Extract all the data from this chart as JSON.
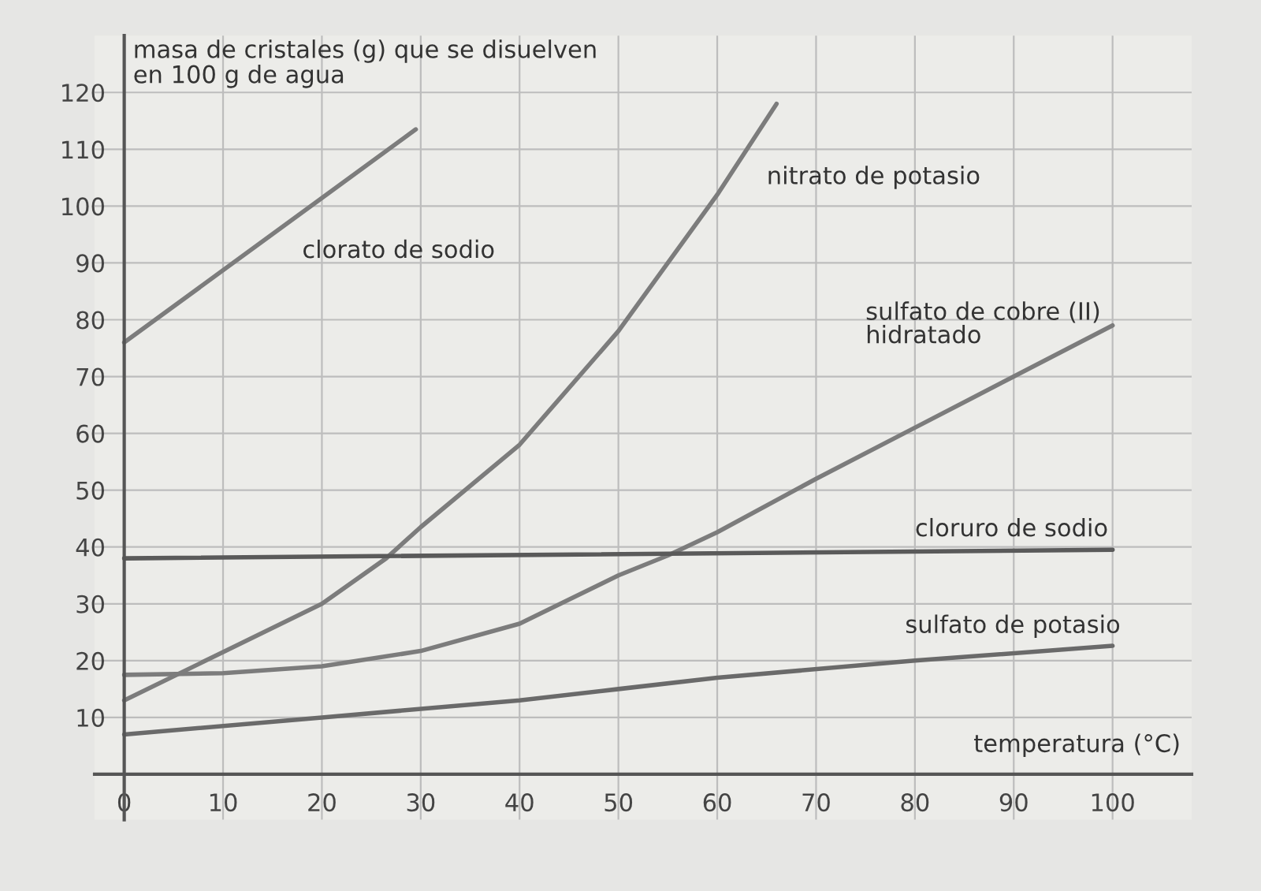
{
  "chart_data": {
    "type": "line",
    "xlabel": "temperatura (°C)",
    "ylabel": "masa de cristales (g) que se disuelven\nen 100 g de agua",
    "xlim": [
      -3,
      108
    ],
    "ylim": [
      -8,
      130
    ],
    "xticks": [
      0,
      10,
      20,
      30,
      40,
      50,
      60,
      70,
      80,
      90,
      100
    ],
    "yticks": [
      10,
      20,
      30,
      40,
      50,
      60,
      70,
      80,
      90,
      100,
      110,
      120
    ],
    "grid": true,
    "marker": "none",
    "line_style": "solid",
    "series": [
      {
        "name": "clorato de sodio",
        "color": "#7c7c7c",
        "x": [
          0,
          29.5
        ],
        "values": [
          76,
          113.5
        ]
      },
      {
        "name": "nitrato de potasio",
        "color": "#7c7c7c",
        "x": [
          0,
          10,
          20,
          26.5,
          30,
          40,
          50,
          60,
          66
        ],
        "values": [
          13,
          21.5,
          30,
          38,
          43.5,
          58,
          78,
          102,
          118
        ]
      },
      {
        "name": "sulfato de cobre (II)\nhidratado",
        "color": "#7c7c7c",
        "x": [
          0,
          10,
          20,
          30,
          40,
          50,
          55,
          60,
          70,
          80,
          90,
          100
        ],
        "values": [
          17.5,
          17.8,
          19,
          21.7,
          26.5,
          35,
          38.5,
          42.6,
          52,
          61,
          70,
          79
        ]
      },
      {
        "name": "cloruro de sodio",
        "color": "#5a5a5a",
        "x": [
          0,
          100
        ],
        "values": [
          38,
          39.5
        ]
      },
      {
        "name": "sulfato de potasio",
        "color": "#6a6a6a",
        "x": [
          0,
          20,
          40,
          50,
          60,
          80,
          100
        ],
        "values": [
          7,
          10,
          13,
          15,
          17,
          20,
          22.6
        ]
      }
    ]
  }
}
